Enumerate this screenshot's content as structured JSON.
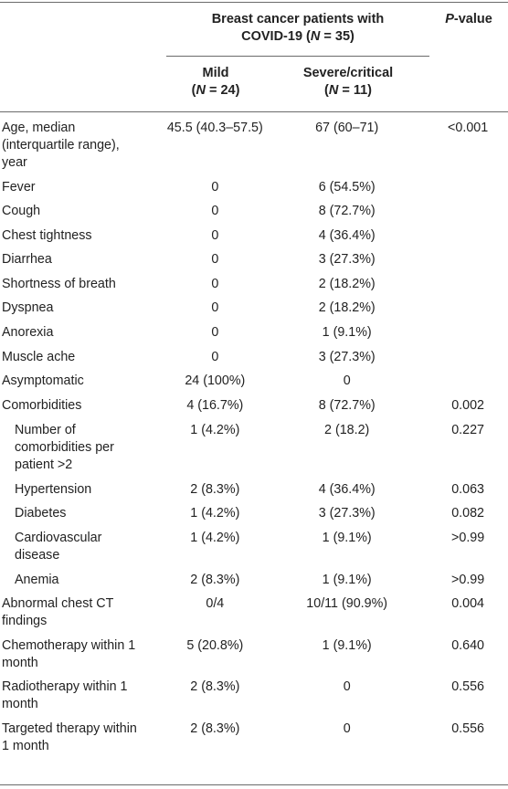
{
  "header": {
    "group_line1": "Breast cancer patients with",
    "group_line2_pre": "COVID-19 (",
    "group_line2_var": "N",
    "group_line2_post": " = 35)",
    "pvalue_var": "P",
    "pvalue_post": "-value",
    "mild_label": "Mild",
    "mild_n_pre": "(",
    "mild_n_var": "N",
    "mild_n_post": " = 24)",
    "severe_label": "Severe/critical",
    "severe_n_pre": "(",
    "severe_n_var": "N",
    "severe_n_post": " = 11)"
  },
  "rows": [
    {
      "label": [
        "Age, median",
        "(interquartile range),",
        "year"
      ],
      "mild": "45.5 (40.3–57.5)",
      "severe": "67 (60–71)",
      "p": "<0.001",
      "indent": false
    },
    {
      "label": [
        "Fever"
      ],
      "mild": "0",
      "severe": "6 (54.5%)",
      "p": "",
      "indent": false
    },
    {
      "label": [
        "Cough"
      ],
      "mild": "0",
      "severe": "8 (72.7%)",
      "p": "",
      "indent": false
    },
    {
      "label": [
        "Chest tightness"
      ],
      "mild": "0",
      "severe": "4 (36.4%)",
      "p": "",
      "indent": false
    },
    {
      "label": [
        "Diarrhea"
      ],
      "mild": "0",
      "severe": "3 (27.3%)",
      "p": "",
      "indent": false
    },
    {
      "label": [
        "Shortness of breath"
      ],
      "mild": "0",
      "severe": "2 (18.2%)",
      "p": "",
      "indent": false
    },
    {
      "label": [
        "Dyspnea"
      ],
      "mild": "0",
      "severe": "2 (18.2%)",
      "p": "",
      "indent": false
    },
    {
      "label": [
        "Anorexia"
      ],
      "mild": "0",
      "severe": "1 (9.1%)",
      "p": "",
      "indent": false
    },
    {
      "label": [
        "Muscle ache"
      ],
      "mild": "0",
      "severe": "3 (27.3%)",
      "p": "",
      "indent": false
    },
    {
      "label": [
        "Asymptomatic"
      ],
      "mild": "24 (100%)",
      "severe": "0",
      "p": "",
      "indent": false
    },
    {
      "label": [
        "Comorbidities"
      ],
      "mild": "4 (16.7%)",
      "severe": "8 (72.7%)",
      "p": "0.002",
      "indent": false
    },
    {
      "label": [
        "Number of",
        "comorbidities per",
        "patient >2"
      ],
      "mild": "1 (4.2%)",
      "severe": "2 (18.2)",
      "p": "0.227",
      "indent": true
    },
    {
      "label": [
        "Hypertension"
      ],
      "mild": "2 (8.3%)",
      "severe": "4 (36.4%)",
      "p": "0.063",
      "indent": true
    },
    {
      "label": [
        "Diabetes"
      ],
      "mild": "1 (4.2%)",
      "severe": "3 (27.3%)",
      "p": "0.082",
      "indent": true
    },
    {
      "label": [
        "Cardiovascular",
        "disease"
      ],
      "mild": "1 (4.2%)",
      "severe": "1 (9.1%)",
      "p": ">0.99",
      "indent": true
    },
    {
      "label": [
        "Anemia"
      ],
      "mild": "2 (8.3%)",
      "severe": "1 (9.1%)",
      "p": ">0.99",
      "indent": true
    },
    {
      "label": [
        "Abnormal chest CT",
        "findings"
      ],
      "mild": "0/4",
      "severe": "10/11 (90.9%)",
      "p": "0.004",
      "indent": false
    },
    {
      "label": [
        "Chemotherapy within 1",
        "month"
      ],
      "mild": "5 (20.8%)",
      "severe": "1 (9.1%)",
      "p": "0.640",
      "indent": false
    },
    {
      "label": [
        "Radiotherapy within 1",
        "month"
      ],
      "mild": "2 (8.3%)",
      "severe": "0",
      "p": "0.556",
      "indent": false
    },
    {
      "label": [
        "Targeted therapy within",
        "1 month"
      ],
      "mild": "2 (8.3%)",
      "severe": "0",
      "p": "0.556",
      "indent": false
    }
  ]
}
